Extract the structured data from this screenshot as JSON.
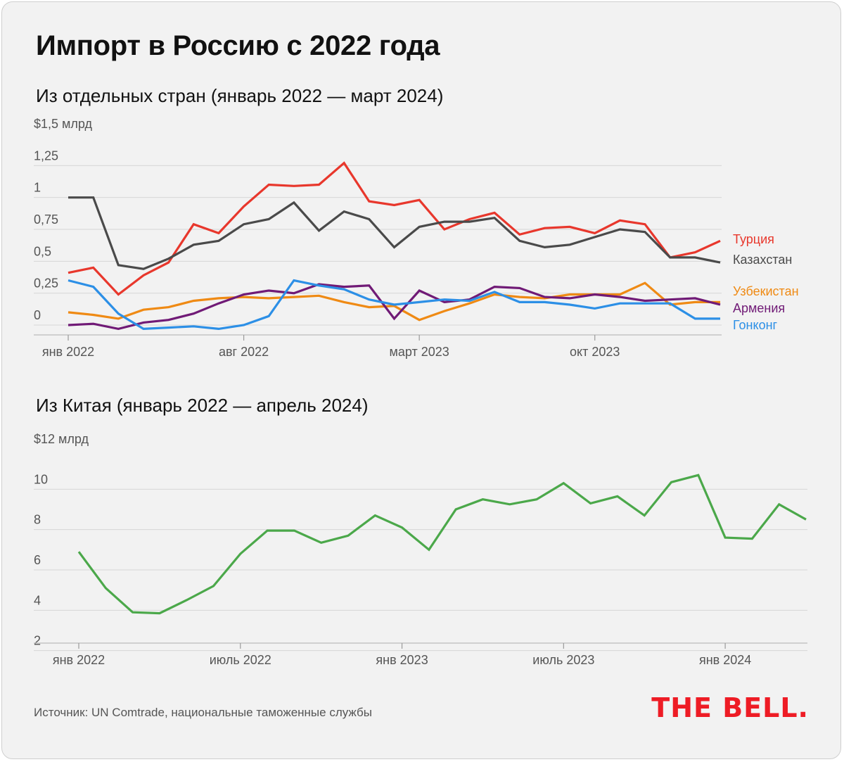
{
  "title": "Импорт в Россию с 2022 года",
  "source": "Источник: UN Comtrade, национальные таможенные службы",
  "logo": "THE BELL.",
  "chart_data": [
    {
      "type": "line",
      "title": "Из отдельных стран (январь 2022 — март 2024)",
      "ylim": [
        0,
        1.5
      ],
      "yticks": [
        {
          "value": 0,
          "label": "0"
        },
        {
          "value": 0.25,
          "label": "0,25"
        },
        {
          "value": 0.5,
          "label": "0,5"
        },
        {
          "value": 0.75,
          "label": "0,75"
        },
        {
          "value": 1,
          "label": "1"
        },
        {
          "value": 1.25,
          "label": "1,25"
        },
        {
          "value": 1.5,
          "label": "$1,5 млрд"
        }
      ],
      "x": [
        "2022-01",
        "2022-02",
        "2022-03",
        "2022-04",
        "2022-05",
        "2022-06",
        "2022-07",
        "2022-08",
        "2022-09",
        "2022-10",
        "2022-11",
        "2022-12",
        "2023-01",
        "2023-02",
        "2023-03",
        "2023-04",
        "2023-05",
        "2023-06",
        "2023-07",
        "2023-08",
        "2023-09",
        "2023-10",
        "2023-11",
        "2023-12",
        "2024-01",
        "2024-02",
        "2024-03"
      ],
      "xticks": [
        {
          "index": 0,
          "label": "янв 2022"
        },
        {
          "index": 7,
          "label": "авг 2022"
        },
        {
          "index": 14,
          "label": "март 2023"
        },
        {
          "index": 21,
          "label": "окт 2023"
        }
      ],
      "grid": true,
      "legend": "inline-right",
      "series": [
        {
          "name": "Турция",
          "color": "#e8372c",
          "values": [
            0.41,
            0.45,
            0.24,
            0.39,
            0.49,
            0.79,
            0.72,
            0.93,
            1.1,
            1.09,
            1.1,
            1.27,
            0.97,
            0.94,
            0.98,
            0.75,
            0.83,
            0.88,
            0.71,
            0.76,
            0.77,
            0.72,
            0.82,
            0.79,
            0.53,
            0.57,
            0.66
          ]
        },
        {
          "name": "Казахстан",
          "color": "#4a4a4a",
          "values": [
            1.0,
            1.0,
            0.47,
            0.44,
            0.52,
            0.63,
            0.66,
            0.79,
            0.83,
            0.96,
            0.74,
            0.89,
            0.83,
            0.61,
            0.77,
            0.81,
            0.81,
            0.84,
            0.66,
            0.61,
            0.63,
            0.69,
            0.75,
            0.73,
            0.53,
            0.53,
            0.49
          ]
        },
        {
          "name": "Узбекистан",
          "color": "#ef8a14",
          "values": [
            0.1,
            0.08,
            0.05,
            0.12,
            0.14,
            0.19,
            0.21,
            0.22,
            0.21,
            0.22,
            0.23,
            0.18,
            0.14,
            0.15,
            0.04,
            0.11,
            0.17,
            0.24,
            0.22,
            0.21,
            0.24,
            0.24,
            0.24,
            0.33,
            0.16,
            0.18,
            0.18
          ]
        },
        {
          "name": "Армения",
          "color": "#701a76",
          "values": [
            0.0,
            0.01,
            -0.03,
            0.02,
            0.04,
            0.09,
            0.17,
            0.24,
            0.27,
            0.25,
            0.32,
            0.3,
            0.31,
            0.05,
            0.27,
            0.18,
            0.2,
            0.3,
            0.29,
            0.22,
            0.21,
            0.24,
            0.22,
            0.19,
            0.2,
            0.21,
            0.16
          ]
        },
        {
          "name": "Гонконг",
          "color": "#2c8fe6",
          "values": [
            0.35,
            0.3,
            0.09,
            -0.03,
            -0.02,
            -0.01,
            -0.03,
            0.0,
            0.07,
            0.35,
            0.31,
            0.28,
            0.2,
            0.16,
            0.18,
            0.2,
            0.19,
            0.26,
            0.18,
            0.18,
            0.16,
            0.13,
            0.17,
            0.17,
            0.17,
            0.05,
            0.05
          ]
        }
      ]
    },
    {
      "type": "line",
      "title": "Из Китая (январь 2022 — апрель 2024)",
      "ylim": [
        1.5,
        12
      ],
      "yticks": [
        {
          "value": 2,
          "label": "2"
        },
        {
          "value": 4,
          "label": "4"
        },
        {
          "value": 6,
          "label": "6"
        },
        {
          "value": 8,
          "label": "8"
        },
        {
          "value": 10,
          "label": "10"
        },
        {
          "value": 12,
          "label": "$12 млрд"
        }
      ],
      "x": [
        "2022-01",
        "2022-02",
        "2022-03",
        "2022-04",
        "2022-05",
        "2022-06",
        "2022-07",
        "2022-08",
        "2022-09",
        "2022-10",
        "2022-11",
        "2022-12",
        "2023-01",
        "2023-02",
        "2023-03",
        "2023-04",
        "2023-05",
        "2023-06",
        "2023-07",
        "2023-08",
        "2023-09",
        "2023-10",
        "2023-11",
        "2023-12",
        "2024-01",
        "2024-02",
        "2024-03",
        "2024-04"
      ],
      "xticks": [
        {
          "index": 0,
          "label": "янв 2022"
        },
        {
          "index": 6,
          "label": "июль 2022"
        },
        {
          "index": 12,
          "label": "янв 2023"
        },
        {
          "index": 18,
          "label": "июль 2023"
        },
        {
          "index": 24,
          "label": "янв 2024"
        }
      ],
      "grid": true,
      "series": [
        {
          "name": "",
          "color": "#4ba84a",
          "values": [
            6.9,
            5.1,
            3.9,
            3.85,
            4.5,
            5.2,
            6.8,
            7.95,
            7.95,
            7.35,
            7.7,
            8.7,
            8.1,
            7.0,
            9.0,
            9.5,
            9.25,
            9.5,
            10.3,
            9.3,
            9.65,
            8.7,
            10.35,
            10.7,
            7.6,
            7.55,
            9.25,
            8.5
          ]
        }
      ]
    }
  ]
}
